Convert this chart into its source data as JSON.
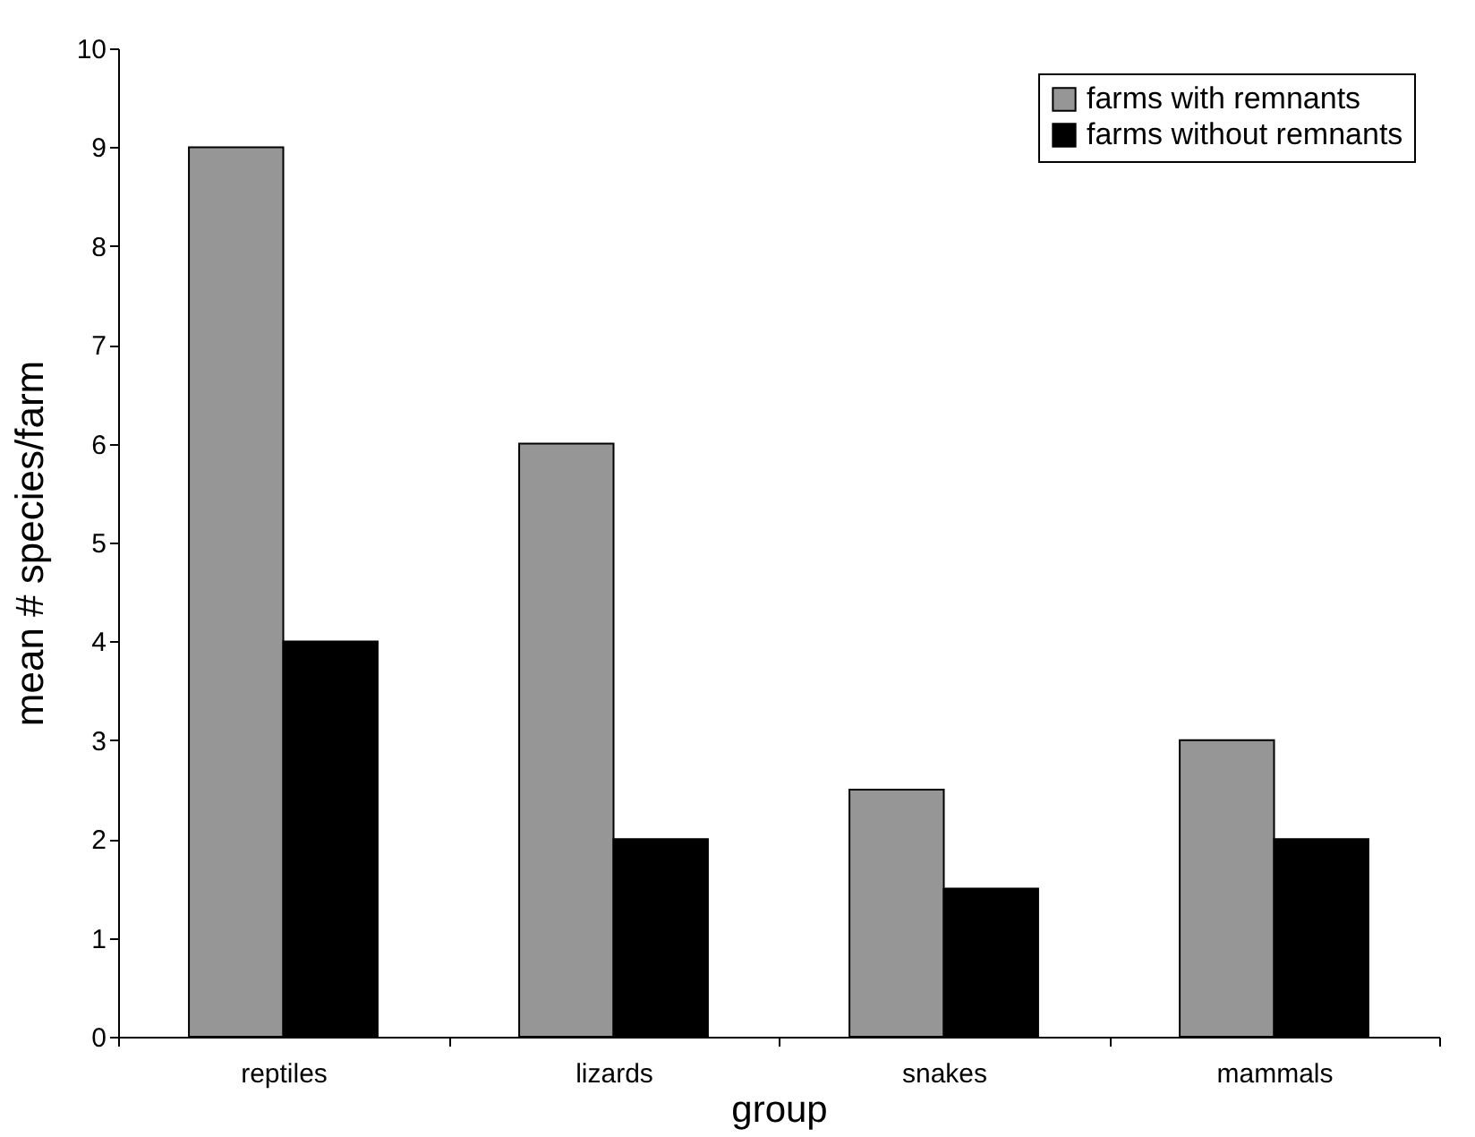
{
  "chart_data": {
    "type": "bar",
    "xlabel": "group",
    "ylabel": "mean # species/farm",
    "categories": [
      "reptiles",
      "lizards",
      "snakes",
      "mammals"
    ],
    "series": [
      {
        "name": "farms with remnants",
        "color": "#969696",
        "values": [
          9,
          6,
          2.5,
          3
        ]
      },
      {
        "name": "farms without remnants",
        "color": "#000000",
        "values": [
          4,
          2,
          1.5,
          2
        ]
      }
    ],
    "ylim": [
      0,
      10
    ],
    "yticks": [
      0,
      1,
      2,
      3,
      4,
      5,
      6,
      7,
      8,
      9,
      10
    ],
    "grid": false,
    "legend": "top right"
  }
}
